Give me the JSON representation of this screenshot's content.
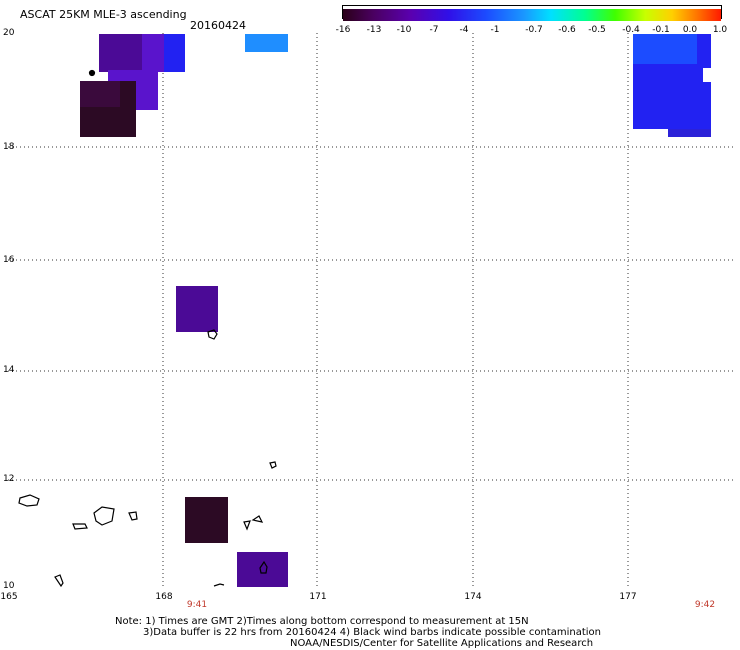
{
  "header": {
    "title": "ASCAT 25KM MLE-3 ascending",
    "date": "20160424"
  },
  "colorbar": {
    "labels": [
      "-16",
      "-13",
      "-10",
      "-7",
      "-4",
      "-1",
      "-0.7",
      "-0.6",
      "-0.5",
      "-0.4",
      "-0.1",
      "0.0",
      "1.0"
    ],
    "colors": [
      "#2a0018",
      "#4a0060",
      "#5a00b0",
      "#3a10e8",
      "#1c4cff",
      "#1a98ff",
      "#00e0ff",
      "#00ff90",
      "#40ff00",
      "#c8ff00",
      "#ffd000",
      "#ff7000",
      "#ff1a00"
    ]
  },
  "axes": {
    "lat_labels": [
      "20",
      "18",
      "16",
      "14",
      "12",
      "10"
    ],
    "lon_labels": [
      "165",
      "168",
      "171",
      "174",
      "177"
    ],
    "time_labels": [
      "9:41",
      "9:42"
    ]
  },
  "cells": {
    "colors": {
      "dark": "#2c0a24",
      "purple": "#4b0a96",
      "violet": "#5a14cc",
      "blue": "#2222f2",
      "sky": "#1f8eff"
    }
  },
  "notes": {
    "line1": "Note: 1) Times are GMT 2)Times along bottom correspond to measurement at 15N",
    "line2": "3)Data buffer is 22 hrs from 20160424 4) Black wind barbs indicate possible contamination",
    "line3": "NOAA/NESDIS/Center for Satellite Applications and Research"
  }
}
